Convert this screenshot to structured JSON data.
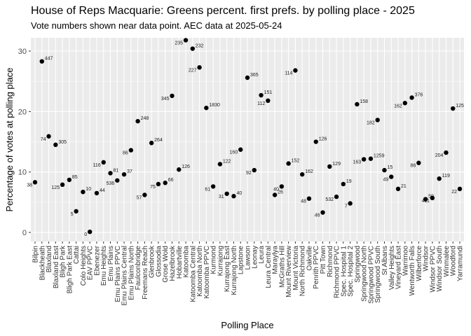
{
  "chart_data": {
    "type": "scatter",
    "title": "House of Reps Macquarie: Greens percent. first prefs. by polling place - 2025",
    "subtitle": "Vote numbers shown near data point.  AEC data at 2025-05-24",
    "xlabel": "Polling Place",
    "ylabel": "Percentage of votes at polling place",
    "ylim": [
      -1.5,
      32.2
    ],
    "yticks": [
      0,
      10,
      20,
      30
    ],
    "grid": true,
    "point_color": "#000000",
    "panel_color": "#ebebeb",
    "grid_color": "#ffffff",
    "points": [
      {
        "place": "Bilpin",
        "y": 8.3,
        "votes": "38"
      },
      {
        "place": "Blackheath",
        "y": 28.3,
        "votes": "447"
      },
      {
        "place": "Blaxland",
        "y": 15.9,
        "votes": "74"
      },
      {
        "place": "Blaxland East",
        "y": 14.5,
        "votes": "305"
      },
      {
        "place": "Bligh Park",
        "y": 7.9,
        "votes": "125"
      },
      {
        "place": "Bligh Park East",
        "y": 8.7,
        "votes": "85"
      },
      {
        "place": "Cattai",
        "y": 3.5,
        "votes": "5"
      },
      {
        "place": "Colo Heights",
        "y": 6.7,
        "votes": "10"
      },
      {
        "place": "EAV PPVC",
        "y": 0.1,
        "votes": "0"
      },
      {
        "place": "Ebenezer",
        "y": 6.5,
        "votes": "44"
      },
      {
        "place": "Emu Heights",
        "y": 11.6,
        "votes": "116"
      },
      {
        "place": "Emu Plains",
        "y": 9.8,
        "votes": "81"
      },
      {
        "place": "Emu Plains PPVC",
        "y": 8.6,
        "votes": "536"
      },
      {
        "place": "Emu Plains Central",
        "y": 9.6,
        "votes": "37"
      },
      {
        "place": "Emu Plains North",
        "y": 13.6,
        "votes": "86"
      },
      {
        "place": "Faulconbridge",
        "y": 18.4,
        "votes": "248"
      },
      {
        "place": "Freemans Reach",
        "y": 6.2,
        "votes": "57"
      },
      {
        "place": "Glenbrook",
        "y": 14.8,
        "votes": "264"
      },
      {
        "place": "Glossodia",
        "y": 8.0,
        "votes": "75"
      },
      {
        "place": "Grose Wold",
        "y": 8.2,
        "votes": "66"
      },
      {
        "place": "Hazelbrook",
        "y": 22.6,
        "votes": "345"
      },
      {
        "place": "Hobartville",
        "y": 10.4,
        "votes": "126"
      },
      {
        "place": "Katoomba",
        "y": 31.8,
        "votes": "235"
      },
      {
        "place": "Katoomba Central",
        "y": 30.4,
        "votes": "232"
      },
      {
        "place": "Katoomba North",
        "y": 27.3,
        "votes": "227"
      },
      {
        "place": "Katoomba PPVC",
        "y": 20.6,
        "votes": "1830"
      },
      {
        "place": "Kurmond",
        "y": 7.6,
        "votes": "61"
      },
      {
        "place": "Kurrajong",
        "y": 11.3,
        "votes": "122"
      },
      {
        "place": "Kurrajong East",
        "y": 6.4,
        "votes": "31"
      },
      {
        "place": "Kurrajong North",
        "y": 6.0,
        "votes": "40"
      },
      {
        "place": "Lapstone",
        "y": 13.7,
        "votes": "160"
      },
      {
        "place": "Lawson",
        "y": 25.6,
        "votes": "365"
      },
      {
        "place": "Leonay",
        "y": 10.3,
        "votes": "92"
      },
      {
        "place": "Leura",
        "y": 22.7,
        "votes": "151"
      },
      {
        "place": "Leura Central",
        "y": 21.8,
        "votes": "112"
      },
      {
        "place": "Maraylya",
        "y": 6.2,
        "votes": "26"
      },
      {
        "place": "McGraths Hill",
        "y": 7.6,
        "votes": "40"
      },
      {
        "place": "Mount Riverview",
        "y": 11.4,
        "votes": "152"
      },
      {
        "place": "Mount Victoria",
        "y": 26.8,
        "votes": "114"
      },
      {
        "place": "North Richmond",
        "y": 9.6,
        "votes": "162"
      },
      {
        "place": "Oakville",
        "y": 5.6,
        "votes": "48"
      },
      {
        "place": "Penrith PPVC",
        "y": 15.0,
        "votes": "126"
      },
      {
        "place": "Pitt Town",
        "y": 3.3,
        "votes": "46"
      },
      {
        "place": "Richmond",
        "y": 10.9,
        "votes": "129"
      },
      {
        "place": "Richmond PPVC",
        "y": 5.9,
        "votes": "532"
      },
      {
        "place": "Spec. Hospital 1",
        "y": 8.0,
        "votes": "19"
      },
      {
        "place": "Spec. Hospital 2",
        "y": 4.8,
        "votes": "7"
      },
      {
        "place": "Springwood",
        "y": 21.2,
        "votes": "158"
      },
      {
        "place": "Springwood North",
        "y": 12.1,
        "votes": "163"
      },
      {
        "place": "Springwood PPVC",
        "y": 12.2,
        "votes": "1259"
      },
      {
        "place": "Springwood South",
        "y": 18.6,
        "votes": "182"
      },
      {
        "place": "St Albans",
        "y": 10.3,
        "votes": "15"
      },
      {
        "place": "Valley Heights",
        "y": 9.2,
        "votes": "49"
      },
      {
        "place": "Vineyard East",
        "y": 7.2,
        "votes": "21"
      },
      {
        "place": "Warrimoo",
        "y": 21.4,
        "votes": "162"
      },
      {
        "place": "Wentworth Falls",
        "y": 22.3,
        "votes": "376"
      },
      {
        "place": "Wilberforce",
        "y": 11.5,
        "votes": "86"
      },
      {
        "place": "Windsor",
        "y": 5.5,
        "votes": "59"
      },
      {
        "place": "Windsor PPVC",
        "y": 5.7,
        "votes": "411"
      },
      {
        "place": "Windsor South",
        "y": 8.9,
        "votes": "119"
      },
      {
        "place": "Winmalee",
        "y": 13.2,
        "votes": "204"
      },
      {
        "place": "Woodford",
        "y": 20.5,
        "votes": "125"
      },
      {
        "place": "Yarramundi",
        "y": 7.2,
        "votes": "22"
      }
    ]
  }
}
